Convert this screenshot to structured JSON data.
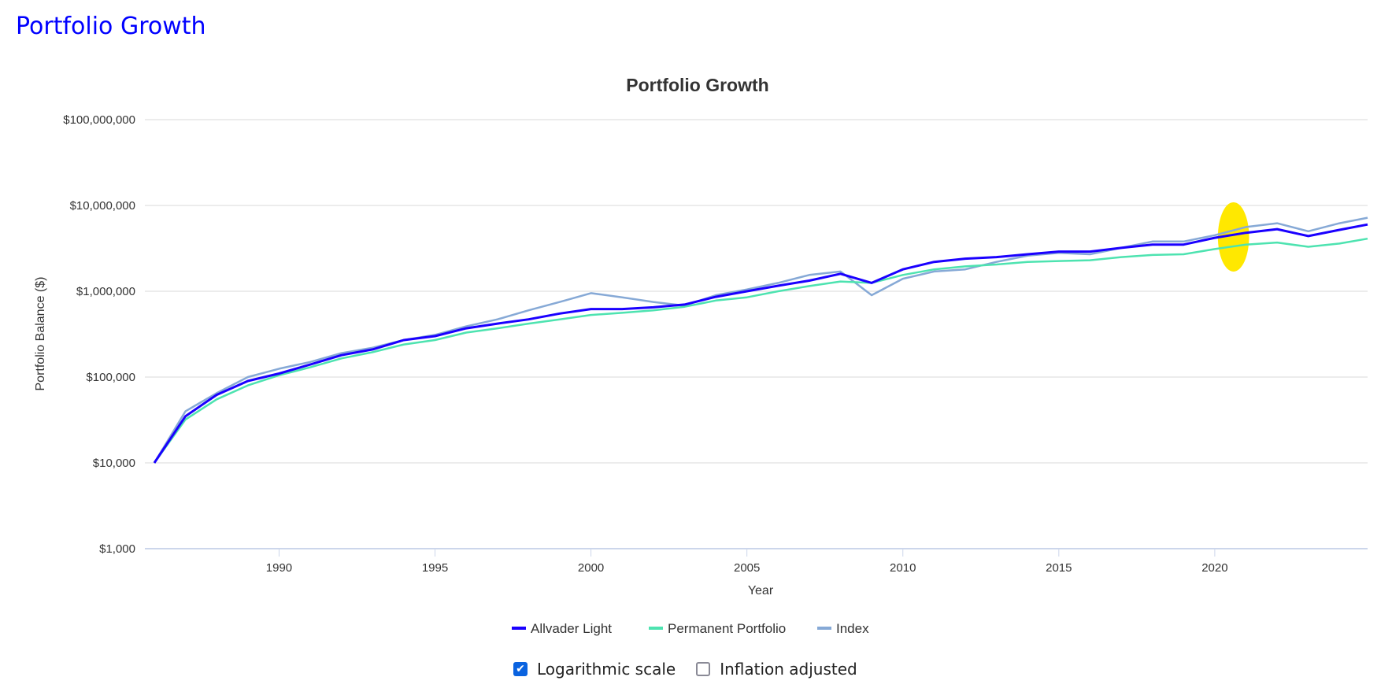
{
  "page_title": "Portfolio Growth",
  "options": {
    "log_scale": {
      "label": "Logarithmic scale",
      "checked": true
    },
    "inflation": {
      "label": "Inflation adjusted",
      "checked": false
    }
  },
  "chart_data": {
    "type": "line",
    "title": "Portfolio Growth",
    "xlabel": "Year",
    "ylabel": "Portfolio Balance ($)",
    "yscale": "log",
    "ylim": [
      1000,
      100000000
    ],
    "xlim": [
      1986,
      2024.9
    ],
    "y_ticks": [
      1000,
      10000,
      100000,
      1000000,
      10000000,
      100000000
    ],
    "y_tick_labels": [
      "$1,000",
      "$10,000",
      "$100,000",
      "$1,000,000",
      "$10,000,000",
      "$100,000,000"
    ],
    "x_ticks": [
      1990,
      1995,
      2000,
      2005,
      2010,
      2015,
      2020
    ],
    "x_tick_labels": [
      "1990",
      "1995",
      "2000",
      "2005",
      "2010",
      "2015",
      "2020"
    ],
    "legend_position": "bottom",
    "grid": true,
    "highlight_range": [
      2020.1,
      2021.1
    ],
    "x": [
      1986,
      1987,
      1988,
      1989,
      1990,
      1991,
      1992,
      1993,
      1994,
      1995,
      1996,
      1997,
      1998,
      1999,
      2000,
      2001,
      2002,
      2003,
      2004,
      2005,
      2006,
      2007,
      2008,
      2009,
      2010,
      2011,
      2012,
      2013,
      2014,
      2015,
      2016,
      2017,
      2018,
      2019,
      2020,
      2021,
      2022,
      2023,
      2024,
      2024.9
    ],
    "series": [
      {
        "name": "Allvader Light",
        "color": "#1a00ff",
        "values": [
          10000,
          35000,
          62000,
          90000,
          110000,
          140000,
          180000,
          210000,
          270000,
          300000,
          370000,
          420000,
          470000,
          550000,
          620000,
          620000,
          650000,
          700000,
          860000,
          1000000,
          1160000,
          1330000,
          1600000,
          1250000,
          1800000,
          2200000,
          2400000,
          2500000,
          2700000,
          2900000,
          2900000,
          3200000,
          3500000,
          3500000,
          4200000,
          4800000,
          5300000,
          4400000,
          5200000,
          6000000
        ]
      },
      {
        "name": "Permanent Portfolio",
        "color": "#4de3b0",
        "values": [
          10000,
          32000,
          55000,
          80000,
          105000,
          130000,
          165000,
          195000,
          240000,
          270000,
          330000,
          370000,
          420000,
          470000,
          530000,
          560000,
          600000,
          660000,
          780000,
          850000,
          1000000,
          1150000,
          1300000,
          1250000,
          1550000,
          1800000,
          1950000,
          2050000,
          2200000,
          2250000,
          2300000,
          2500000,
          2650000,
          2700000,
          3100000,
          3500000,
          3700000,
          3300000,
          3600000,
          4100000
        ]
      },
      {
        "name": "Index",
        "color": "#86a9d6",
        "values": [
          10000,
          40000,
          65000,
          100000,
          125000,
          150000,
          190000,
          220000,
          270000,
          310000,
          390000,
          470000,
          600000,
          750000,
          950000,
          850000,
          750000,
          680000,
          900000,
          1050000,
          1250000,
          1550000,
          1700000,
          900000,
          1400000,
          1700000,
          1800000,
          2200000,
          2600000,
          2800000,
          2700000,
          3200000,
          3800000,
          3800000,
          4500000,
          5600000,
          6200000,
          5000000,
          6200000,
          7200000
        ]
      }
    ]
  }
}
